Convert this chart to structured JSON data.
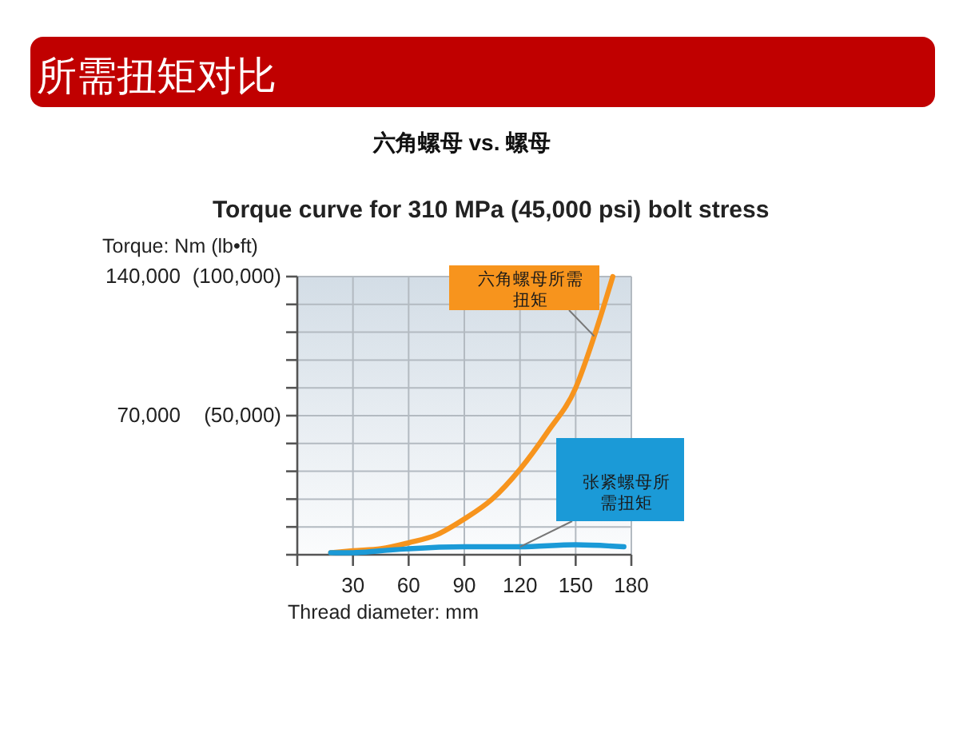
{
  "chart_data": {
    "type": "line",
    "title": "所需扭矩对比",
    "subtitle": "六角螺母 vs. 螺母",
    "annotations": [
      "Torque curve for 310 MPa (45,000 psi) bolt stress"
    ],
    "xlabel": "Thread diameter: mm",
    "ylabel": "Torque: Nm (lb•ft)",
    "xlim": [
      0,
      180
    ],
    "ylim": [
      0,
      140000
    ],
    "y2lim": [
      0,
      100000
    ],
    "xticks": [
      {
        "value": 0,
        "label": null
      },
      30,
      60,
      90,
      120,
      150,
      180
    ],
    "yticks": [
      {
        "value": 0,
        "label": null
      },
      {
        "value": 14000,
        "label": null
      },
      {
        "value": 28000,
        "label": null
      },
      {
        "value": 42000,
        "label": null
      },
      {
        "value": 56000,
        "label": null
      },
      {
        "value": 70000,
        "label": "70,000"
      },
      {
        "value": 84000,
        "label": null
      },
      {
        "value": 98000,
        "label": null
      },
      {
        "value": 112000,
        "label": null
      },
      {
        "value": 126000,
        "label": null
      },
      {
        "value": 140000,
        "label": "140,000"
      }
    ],
    "y2ticks": [
      {
        "value": 50000,
        "label": "(50,000)"
      },
      {
        "value": 100000,
        "label": "(100,000)"
      }
    ],
    "grid": true,
    "series": [
      {
        "name": "六角螺母所需扭矩",
        "color": "#f7941d",
        "x": [
          18,
          30,
          45,
          60,
          75,
          90,
          105,
          120,
          135,
          150,
          160,
          170
        ],
        "values": [
          1000,
          2000,
          3000,
          6000,
          10000,
          18000,
          28000,
          43000,
          62000,
          84000,
          110000,
          140000
        ]
      },
      {
        "name": "张紧螺母所需扭矩",
        "color": "#1b9ad7",
        "x": [
          18,
          30,
          45,
          60,
          90,
          120,
          150,
          176
        ],
        "values": [
          1000,
          1000,
          2000,
          3000,
          4000,
          4000,
          5000,
          4000
        ]
      }
    ]
  }
}
